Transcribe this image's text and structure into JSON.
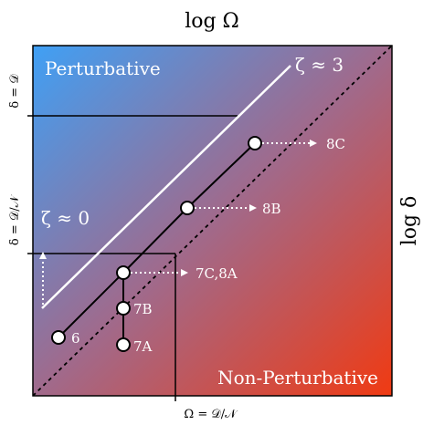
{
  "top_axis_label": "log Ω",
  "right_axis_label": "log δ",
  "left_tick_top": "δ = 𝒟",
  "left_tick_mid": "δ = 𝒟/𝒩",
  "bottom_tick": "Ω = 𝒟/𝒩",
  "region_top_left": "Perturbative",
  "region_bottom_right": "Non-Perturbative",
  "zeta_high": "ζ ≈ 3",
  "zeta_low": "ζ ≈ 0",
  "points": [
    {
      "id": "6",
      "label": "6"
    },
    {
      "id": "7A",
      "label": "7A"
    },
    {
      "id": "7B",
      "label": "7B"
    },
    {
      "id": "7C8A",
      "label": "7C,8A"
    },
    {
      "id": "8B",
      "label": "8B"
    },
    {
      "id": "8C",
      "label": "8C"
    }
  ],
  "colors": {
    "gradient_top_left": "#3fa0f5",
    "gradient_mid": "#a06a8c",
    "gradient_bottom_right": "#f03a12",
    "line_white": "#ffffff",
    "line_black": "#000000"
  }
}
